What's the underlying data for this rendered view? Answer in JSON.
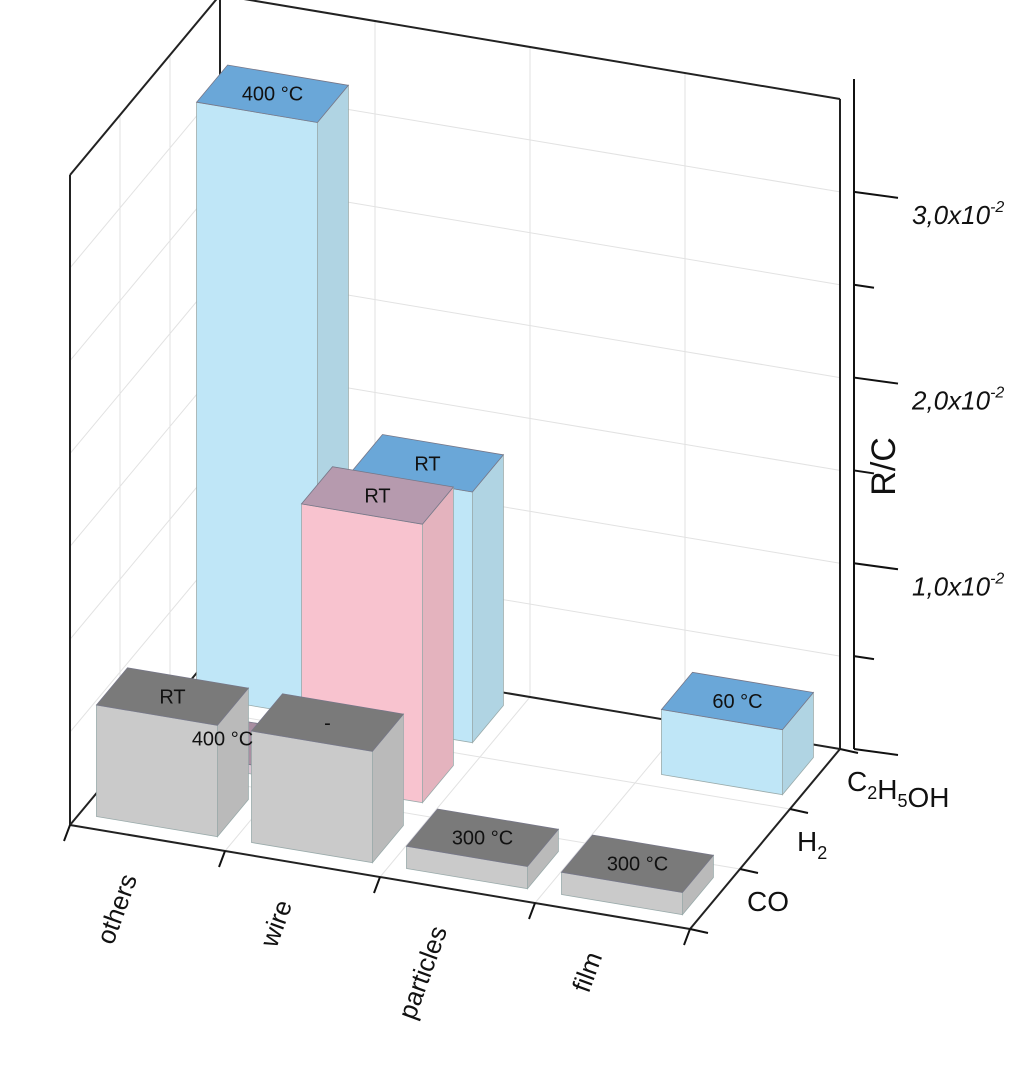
{
  "chart_data": {
    "type": "bar3d",
    "z_axis": {
      "label": "R/C",
      "min": 0,
      "max": 0.035,
      "ticks": [
        {
          "mantissa": "1,0x10",
          "exponent": "-2"
        },
        {
          "mantissa": "2,0x10",
          "exponent": "-2"
        },
        {
          "mantissa": "3,0x10",
          "exponent": "-2"
        }
      ]
    },
    "x_categories": [
      "others",
      "wire",
      "particles",
      "film"
    ],
    "y_categories": [
      {
        "text": "CO"
      },
      {
        "text": "H",
        "sub": "2"
      },
      {
        "text": "C",
        "sub1": "2",
        "mid": "H",
        "sub2": "5",
        "tail": "OH"
      }
    ],
    "bars": [
      {
        "x": "others",
        "gas": "C2H5OH",
        "value": 0.032,
        "label": "400 °C",
        "color": "#bfe6f7",
        "top_color": "#6aa7d8"
      },
      {
        "x": "wire",
        "gas": "C2H5OH",
        "value": 0.0135,
        "label": "RT",
        "color": "#bfe6f7",
        "top_color": "#6aa7d8"
      },
      {
        "x": "film",
        "gas": "C2H5OH",
        "value": 0.0035,
        "label": "60 °C",
        "color": "#bfe6f7",
        "top_color": "#6aa7d8"
      },
      {
        "x": "others",
        "gas": "H2",
        "value": 0.0005,
        "label": "400 °C",
        "color": "#d9c5d2",
        "top_color": "#a88ea1"
      },
      {
        "x": "wire",
        "gas": "H2",
        "value": 0.015,
        "label": "RT",
        "color": "#f8c3cf",
        "top_color": "#b69aae"
      },
      {
        "x": "others",
        "gas": "CO",
        "value": 0.006,
        "label": "RT",
        "color": "#cacaca",
        "top_color": "#7a7a7a"
      },
      {
        "x": "wire",
        "gas": "CO",
        "value": 0.006,
        "label": "-",
        "color": "#cacaca",
        "top_color": "#7a7a7a"
      },
      {
        "x": "particles",
        "gas": "CO",
        "value": 0.0012,
        "label": "300 °C",
        "color": "#cacaca",
        "top_color": "#7a7a7a"
      },
      {
        "x": "film",
        "gas": "CO",
        "value": 0.0012,
        "label": "300 °C",
        "color": "#cacaca",
        "top_color": "#7a7a7a"
      }
    ]
  }
}
